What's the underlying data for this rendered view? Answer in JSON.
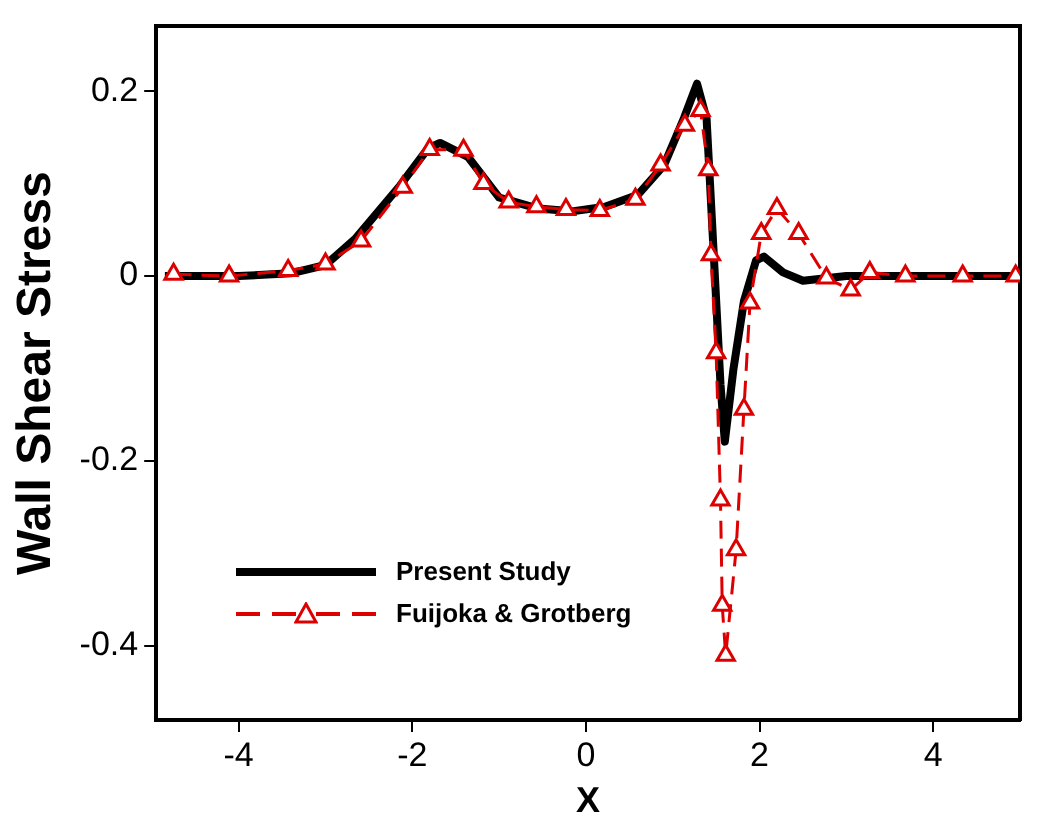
{
  "chart_data": {
    "type": "line",
    "xlabel": "X",
    "ylabel": "Wall Shear Stress",
    "xlim": [
      -4.95,
      5
    ],
    "xticks": [
      -4,
      -2,
      0,
      2,
      4
    ],
    "ylim": [
      -0.48,
      0.27
    ],
    "yticks": [
      -0.4,
      -0.2,
      0,
      0.2
    ],
    "grid": false,
    "legend": "bottom left",
    "series": [
      {
        "name": "Present Study",
        "color": "#000000",
        "marker": "none",
        "line_style": "solid",
        "x": [
          -4.85,
          -4,
          -3.4,
          -3.0,
          -2.66,
          -2.14,
          -1.82,
          -1.68,
          -1.36,
          -1.0,
          -0.55,
          -0.16,
          0.22,
          0.6,
          0.9,
          1.13,
          1.28,
          1.39,
          1.48,
          1.55,
          1.6,
          1.7,
          1.82,
          1.96,
          2.05,
          2.27,
          2.5,
          3.0,
          4.0,
          5.0
        ],
        "values": [
          0,
          0,
          0.003,
          0.012,
          0.04,
          0.098,
          0.138,
          0.144,
          0.129,
          0.085,
          0.073,
          0.07,
          0.075,
          0.088,
          0.12,
          0.171,
          0.208,
          0.17,
          0.01,
          -0.117,
          -0.179,
          -0.1,
          -0.027,
          0.017,
          0.021,
          0.004,
          -0.005,
          0,
          0,
          0
        ]
      },
      {
        "name": "Fuijoka & Grotberg",
        "color": "#dd0000",
        "marker": "triangle",
        "line_style": "dashed",
        "x": [
          -4.75,
          -4.11,
          -3.43,
          -3.0,
          -2.59,
          -2.11,
          -1.8,
          -1.41,
          -1.18,
          -0.89,
          -0.57,
          -0.23,
          0.16,
          0.57,
          0.86,
          1.14,
          1.32,
          1.41,
          1.44,
          1.5,
          1.55,
          1.57,
          1.61,
          1.73,
          1.82,
          1.89,
          2.02,
          2.2,
          2.45,
          2.77,
          3.05,
          3.27,
          3.68,
          4.34,
          4.95
        ],
        "values": [
          0.002,
          0,
          0.006,
          0.013,
          0.038,
          0.096,
          0.137,
          0.136,
          0.1,
          0.08,
          0.075,
          0.072,
          0.071,
          0.083,
          0.12,
          0.163,
          0.179,
          0.115,
          0.023,
          -0.083,
          -0.242,
          -0.356,
          -0.41,
          -0.296,
          -0.144,
          -0.029,
          0.046,
          0.073,
          0.046,
          -0.002,
          -0.015,
          0.004,
          0,
          0,
          0
        ]
      }
    ]
  }
}
